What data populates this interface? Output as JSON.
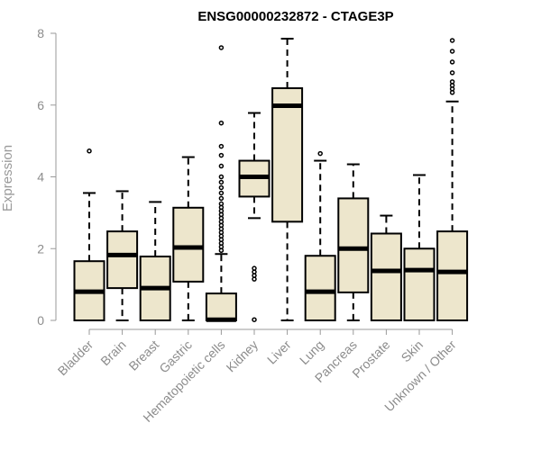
{
  "chart_data": {
    "type": "boxplot",
    "title": "ENSG00000232872 - CTAGE3P",
    "xlabel": "",
    "ylabel": "Expression",
    "ylim": [
      0,
      8
    ],
    "yticks": [
      0,
      2,
      4,
      6,
      8
    ],
    "grid": false,
    "box_fill": "#ede6cc",
    "median_color": "#000000",
    "categories": [
      "Bladder",
      "Brain",
      "Breast",
      "Gastric",
      "Hematopoietic cells",
      "Kidney",
      "Liver",
      "Lung",
      "Pancreas",
      "Prostate",
      "Skin",
      "Unknown / Other"
    ],
    "boxes": [
      {
        "category": "Bladder",
        "whisker_low": 0,
        "q1": 0,
        "median": 0.8,
        "q3": 1.65,
        "whisker_high": 3.55,
        "outliers": [
          4.72
        ]
      },
      {
        "category": "Brain",
        "whisker_low": 0,
        "q1": 0.9,
        "median": 1.82,
        "q3": 2.48,
        "whisker_high": 3.6,
        "outliers": []
      },
      {
        "category": "Breast",
        "whisker_low": 0,
        "q1": 0,
        "median": 0.9,
        "q3": 1.78,
        "whisker_high": 3.3,
        "outliers": []
      },
      {
        "category": "Gastric",
        "whisker_low": 0,
        "q1": 1.08,
        "median": 2.03,
        "q3": 3.14,
        "whisker_high": 4.55,
        "outliers": []
      },
      {
        "category": "Hematopoietic cells",
        "whisker_low": 0,
        "q1": 0,
        "median": 0.02,
        "q3": 0.75,
        "whisker_high": 1.85,
        "outliers": [
          1.95,
          2.05,
          2.15,
          2.25,
          2.35,
          2.45,
          2.55,
          2.65,
          2.75,
          2.85,
          2.95,
          3.05,
          3.15,
          3.25,
          3.4,
          3.55,
          3.7,
          3.85,
          4.0,
          4.3,
          4.6,
          4.85,
          5.5,
          7.6
        ]
      },
      {
        "category": "Kidney",
        "whisker_low": 2.85,
        "q1": 3.45,
        "median": 4.0,
        "q3": 4.45,
        "whisker_high": 5.78,
        "outliers": [
          0.02,
          1.15,
          1.25,
          1.35,
          1.45
        ]
      },
      {
        "category": "Liver",
        "whisker_low": 0,
        "q1": 2.75,
        "median": 5.98,
        "q3": 6.47,
        "whisker_high": 7.85,
        "outliers": []
      },
      {
        "category": "Lung",
        "whisker_low": 0,
        "q1": 0,
        "median": 0.8,
        "q3": 1.8,
        "whisker_high": 4.45,
        "outliers": [
          4.65
        ]
      },
      {
        "category": "Pancreas",
        "whisker_low": 0,
        "q1": 0.78,
        "median": 2.0,
        "q3": 3.4,
        "whisker_high": 4.35,
        "outliers": []
      },
      {
        "category": "Prostate",
        "whisker_low": 0,
        "q1": 0,
        "median": 1.38,
        "q3": 2.42,
        "whisker_high": 2.92,
        "outliers": []
      },
      {
        "category": "Skin",
        "whisker_low": 0,
        "q1": 0,
        "median": 1.4,
        "q3": 2.0,
        "whisker_high": 4.05,
        "outliers": []
      },
      {
        "category": "Unknown / Other",
        "whisker_low": 0,
        "q1": 0,
        "median": 1.35,
        "q3": 2.48,
        "whisker_high": 6.1,
        "outliers": [
          6.35,
          6.45,
          6.55,
          6.65,
          6.9,
          7.2,
          7.5,
          7.8
        ]
      }
    ]
  }
}
